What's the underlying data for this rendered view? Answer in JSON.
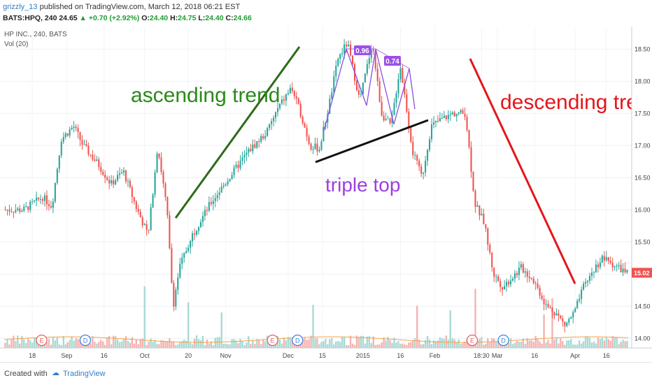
{
  "header": {
    "author": "grizzly_13",
    "published": " published on TradingView.com, March 12, 2018 06:21 EST",
    "symbol_line_prefix": "BATS:HPQ, 240",
    "last": "24.65",
    "change": "+0.70 (+2.92%)",
    "o_label": "O:",
    "o_value": "24.40",
    "h_label": "H:",
    "h_value": "24.75",
    "l_label": "L:",
    "l_value": "24.40",
    "c_label": "C:",
    "c_value": "24.66"
  },
  "legend": {
    "title": "HP INC., 240, BATS",
    "vol": "Vol (20)"
  },
  "annotations": {
    "ascending": "ascending trend",
    "descending": "descending tren",
    "triple_top": "triple top",
    "ratio1": "0.96",
    "ratio2": "0.74"
  },
  "footer": {
    "created": "Created with",
    "brand": "TradingView"
  },
  "chart_data": {
    "type": "candlestick",
    "price_axis_ticks": [
      "18.50",
      "18.00",
      "17.50",
      "17.00",
      "16.50",
      "16.00",
      "15.50",
      "15.00",
      "14.50",
      "14.00"
    ],
    "ylim": [
      13.85,
      18.85
    ],
    "last_price_label": "15.02",
    "time_axis_ticks": [
      "18",
      "Sep",
      "16",
      "Oct",
      "20",
      "Nov",
      "Dec",
      "15",
      "2015",
      "16",
      "Feb",
      "18:30",
      "Mar",
      "16",
      "Apr",
      "16"
    ],
    "event_markers": [
      {
        "label": "E",
        "pos": 0.06
      },
      {
        "label": "D",
        "pos": 0.13
      },
      {
        "label": "E",
        "pos": 0.43
      },
      {
        "label": "D",
        "pos": 0.47
      },
      {
        "label": "E",
        "pos": 0.75
      },
      {
        "label": "D",
        "pos": 0.8
      }
    ],
    "anchors": [
      [
        0,
        16.0
      ],
      [
        0.03,
        16.0
      ],
      [
        0.06,
        16.2
      ],
      [
        0.075,
        16.05
      ],
      [
        0.09,
        17.1
      ],
      [
        0.11,
        17.3
      ],
      [
        0.125,
        17.0
      ],
      [
        0.15,
        16.7
      ],
      [
        0.17,
        16.4
      ],
      [
        0.19,
        16.6
      ],
      [
        0.21,
        16.05
      ],
      [
        0.23,
        15.6
      ],
      [
        0.245,
        17.0
      ],
      [
        0.26,
        16.0
      ],
      [
        0.27,
        14.5
      ],
      [
        0.28,
        15.1
      ],
      [
        0.3,
        15.6
      ],
      [
        0.33,
        16.1
      ],
      [
        0.36,
        16.5
      ],
      [
        0.39,
        16.9
      ],
      [
        0.42,
        17.2
      ],
      [
        0.44,
        17.6
      ],
      [
        0.46,
        17.9
      ],
      [
        0.475,
        17.5
      ],
      [
        0.49,
        17.0
      ],
      [
        0.505,
        16.95
      ],
      [
        0.52,
        17.6
      ],
      [
        0.535,
        18.35
      ],
      [
        0.55,
        18.6
      ],
      [
        0.57,
        17.7
      ],
      [
        0.59,
        18.6
      ],
      [
        0.605,
        17.5
      ],
      [
        0.62,
        17.3
      ],
      [
        0.635,
        18.25
      ],
      [
        0.645,
        17.6
      ],
      [
        0.655,
        16.9
      ],
      [
        0.67,
        16.5
      ],
      [
        0.685,
        17.3
      ],
      [
        0.7,
        17.4
      ],
      [
        0.72,
        17.5
      ],
      [
        0.74,
        17.5
      ],
      [
        0.755,
        16.1
      ],
      [
        0.77,
        15.8
      ],
      [
        0.785,
        15.0
      ],
      [
        0.8,
        14.8
      ],
      [
        0.815,
        14.95
      ],
      [
        0.83,
        15.1
      ],
      [
        0.85,
        14.9
      ],
      [
        0.87,
        14.5
      ],
      [
        0.885,
        14.4
      ],
      [
        0.9,
        14.2
      ],
      [
        0.915,
        14.4
      ],
      [
        0.93,
        14.8
      ],
      [
        0.945,
        15.05
      ],
      [
        0.96,
        15.25
      ],
      [
        1.0,
        15.02
      ]
    ],
    "grid": true
  }
}
